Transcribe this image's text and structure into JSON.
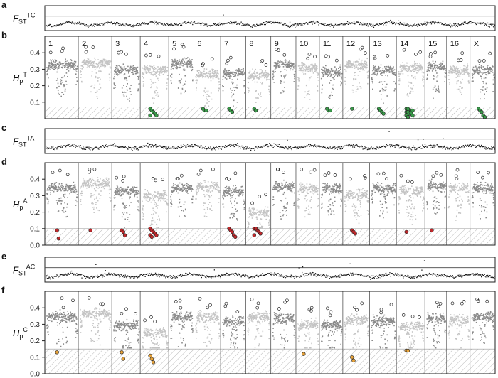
{
  "panels": [
    {
      "id": "a",
      "label": "a",
      "type": "fst",
      "ylabel_main": "F",
      "ylabel_sub": "ST",
      "ylabel_sup": "TC"
    },
    {
      "id": "b",
      "label": "b",
      "type": "hp",
      "ylabel_main": "H",
      "ylabel_sub": "p",
      "ylabel_sup": "T"
    },
    {
      "id": "c",
      "label": "c",
      "type": "fst",
      "ylabel_main": "F",
      "ylabel_sub": "ST",
      "ylabel_sup": "TA"
    },
    {
      "id": "d",
      "label": "d",
      "type": "hp",
      "ylabel_main": "H",
      "ylabel_sub": "p",
      "ylabel_sup": "A"
    },
    {
      "id": "e",
      "label": "e",
      "type": "fst",
      "ylabel_main": "F",
      "ylabel_sub": "ST",
      "ylabel_sup": "AC"
    },
    {
      "id": "f",
      "label": "f",
      "type": "hp",
      "ylabel_main": "H",
      "ylabel_sub": "p",
      "ylabel_sup": "C"
    }
  ],
  "chromosomes": [
    "1",
    "2",
    "3",
    "4",
    "5",
    "6",
    "7",
    "8",
    "9",
    "10",
    "11",
    "12",
    "13",
    "14",
    "15",
    "16",
    "X"
  ],
  "colors": {
    "dark_points": "#8a8a8a",
    "light_points": "#c4c4c4",
    "fst_points": "#1a1a1a",
    "highlight_b": "#3a9a4a",
    "highlight_d": "#c0282b",
    "highlight_f": "#e6a23a",
    "hatch": "#b8b8b8"
  },
  "chart_data": [
    {
      "panel": "b",
      "type": "scatter",
      "yticks": [
        "0.1",
        "0.2",
        "0.3",
        "0.4"
      ],
      "ylim": [
        0,
        0.5
      ],
      "threshold": 0.07,
      "median_by_chromosome": [
        0.33,
        0.34,
        0.3,
        0.3,
        0.34,
        0.27,
        0.28,
        0.27,
        0.33,
        0.31,
        0.29,
        0.33,
        0.3,
        0.31,
        0.32,
        0.3,
        0.3
      ],
      "highlighted_low": [
        {
          "chr": "4",
          "values": [
            0.06,
            0.05,
            0.04,
            0.03,
            0.02,
            0.02
          ]
        },
        {
          "chr": "6",
          "values": [
            0.06,
            0.05,
            0.05
          ]
        },
        {
          "chr": "7",
          "values": [
            0.06,
            0.05,
            0.04
          ]
        },
        {
          "chr": "8",
          "values": [
            0.06,
            0.05
          ]
        },
        {
          "chr": "11",
          "values": [
            0.06,
            0.05,
            0.05
          ]
        },
        {
          "chr": "12",
          "values": [
            0.06
          ]
        },
        {
          "chr": "13",
          "values": [
            0.06,
            0.05,
            0.04,
            0.03
          ]
        },
        {
          "chr": "14",
          "values": [
            0.06,
            0.06,
            0.05,
            0.05,
            0.05,
            0.04,
            0.04,
            0.03,
            0.03,
            0.02,
            0.02,
            0.01
          ]
        },
        {
          "chr": "X",
          "values": [
            0.06,
            0.05,
            0.04,
            0.02,
            0.01
          ]
        }
      ]
    },
    {
      "panel": "d",
      "type": "scatter",
      "yticks": [
        "0.0",
        "0.1",
        "0.2",
        "0.3",
        "0.4"
      ],
      "ylim": [
        0,
        0.5
      ],
      "threshold": 0.1,
      "median_by_chromosome": [
        0.35,
        0.38,
        0.33,
        0.3,
        0.35,
        0.36,
        0.33,
        0.2,
        0.36,
        0.35,
        0.35,
        0.31,
        0.35,
        0.33,
        0.36,
        0.35,
        0.35
      ],
      "highlighted_low": [
        {
          "chr": "1",
          "values": [
            0.09,
            0.04
          ]
        },
        {
          "chr": "2",
          "values": [
            0.09
          ]
        },
        {
          "chr": "3",
          "values": [
            0.09,
            0.08,
            0.06
          ]
        },
        {
          "chr": "4",
          "values": [
            0.1,
            0.09,
            0.08,
            0.07,
            0.06,
            0.06,
            0.05
          ]
        },
        {
          "chr": "7",
          "values": [
            0.1,
            0.09,
            0.08,
            0.06,
            0.05
          ]
        },
        {
          "chr": "8",
          "values": [
            0.1,
            0.1,
            0.09,
            0.08,
            0.07,
            0.06,
            0.1
          ]
        },
        {
          "chr": "12",
          "values": [
            0.09,
            0.08,
            0.07
          ]
        },
        {
          "chr": "14",
          "values": [
            0.08
          ]
        },
        {
          "chr": "15",
          "values": [
            0.09
          ]
        }
      ]
    },
    {
      "panel": "f",
      "type": "scatter",
      "yticks": [
        "0.0",
        "0.1",
        "0.2",
        "0.3",
        "0.4"
      ],
      "ylim": [
        0,
        0.5
      ],
      "threshold": 0.15,
      "median_by_chromosome": [
        0.35,
        0.37,
        0.3,
        0.25,
        0.35,
        0.35,
        0.32,
        0.35,
        0.34,
        0.3,
        0.3,
        0.33,
        0.32,
        0.29,
        0.34,
        0.33,
        0.35
      ],
      "highlighted_low": [
        {
          "chr": "1",
          "values": [
            0.13
          ]
        },
        {
          "chr": "3",
          "values": [
            0.13,
            0.09
          ]
        },
        {
          "chr": "4",
          "values": [
            0.11,
            0.09,
            0.07
          ]
        },
        {
          "chr": "10",
          "values": [
            0.12
          ]
        },
        {
          "chr": "12",
          "values": [
            0.1,
            0.08
          ]
        },
        {
          "chr": "14",
          "values": [
            0.14,
            0.14
          ]
        }
      ]
    }
  ]
}
